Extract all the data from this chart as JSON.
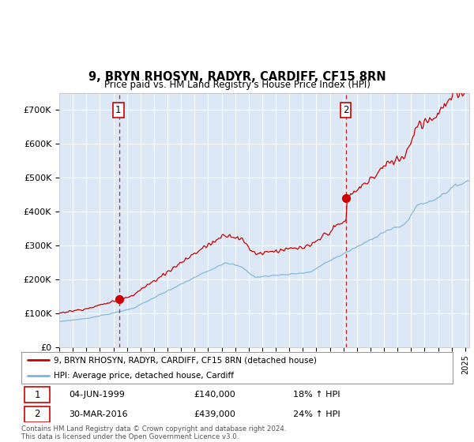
{
  "title": "9, BRYN RHOSYN, RADYR, CARDIFF, CF15 8RN",
  "subtitle": "Price paid vs. HM Land Registry's House Price Index (HPI)",
  "ylim": [
    0,
    750000
  ],
  "yticks": [
    0,
    100000,
    200000,
    300000,
    400000,
    500000,
    600000,
    700000
  ],
  "ytick_labels": [
    "£0",
    "£100K",
    "£200K",
    "£300K",
    "£400K",
    "£500K",
    "£600K",
    "£700K"
  ],
  "xlim_start": 1995.0,
  "xlim_end": 2025.3,
  "purchase1": {
    "date_num": 1999.42,
    "price": 140000,
    "label": "1",
    "date_str": "04-JUN-1999",
    "hpi_pct": "18% ↑ HPI"
  },
  "purchase2": {
    "date_num": 2016.21,
    "price": 439000,
    "label": "2",
    "date_str": "30-MAR-2016",
    "hpi_pct": "24% ↑ HPI"
  },
  "legend_line1": "9, BRYN RHOSYN, RADYR, CARDIFF, CF15 8RN (detached house)",
  "legend_line2": "HPI: Average price, detached house, Cardiff",
  "footer1": "Contains HM Land Registry data © Crown copyright and database right 2024.",
  "footer2": "This data is licensed under the Open Government Licence v3.0.",
  "hpi_color": "#7ab4d8",
  "price_color": "#cc0000",
  "bg_color": "#dce8f5",
  "table_info": [
    {
      "num": "1",
      "date": "04-JUN-1999",
      "price": "£140,000",
      "hpi": "18% ↑ HPI"
    },
    {
      "num": "2",
      "date": "30-MAR-2016",
      "price": "£439,000",
      "hpi": "24% ↑ HPI"
    }
  ]
}
